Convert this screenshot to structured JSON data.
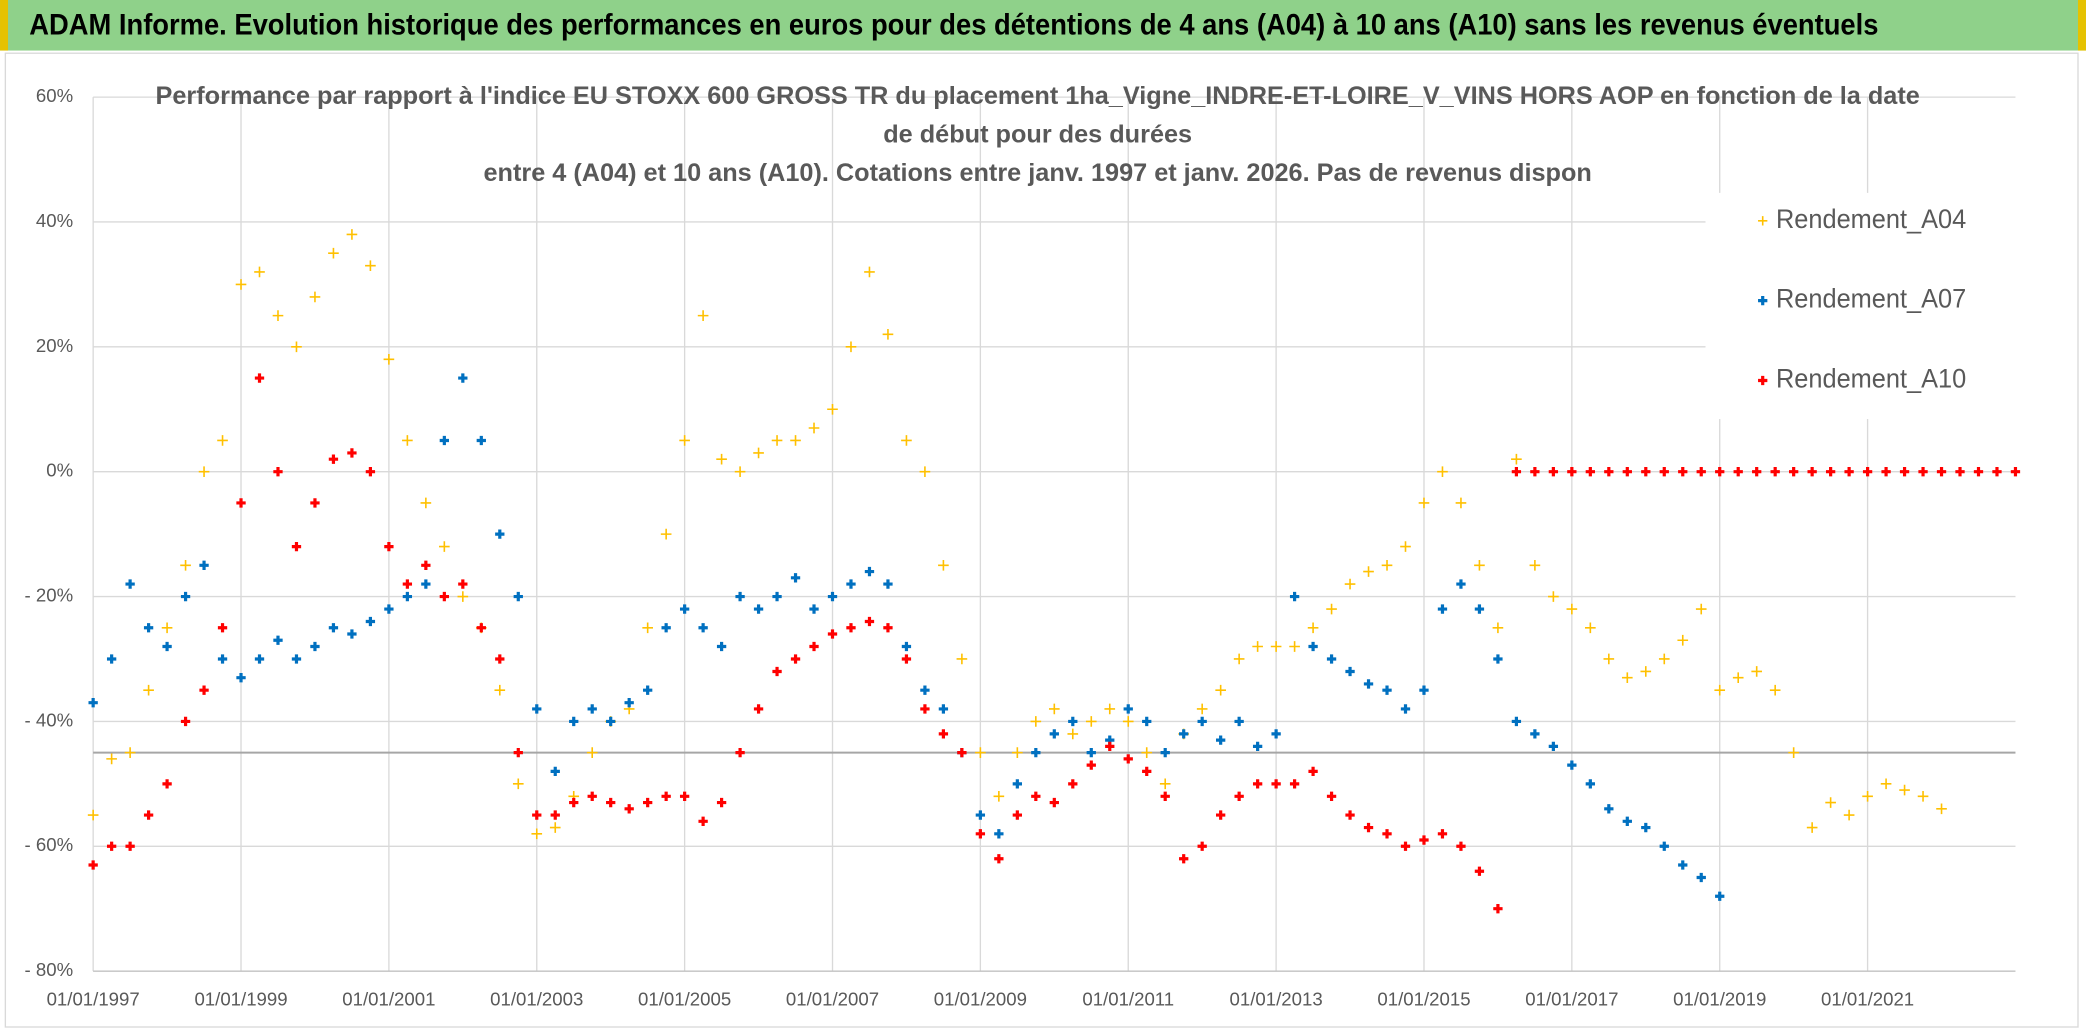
{
  "header": "ADAM Informe. Evolution historique des performances en euros pour des détentions de 4 ans (A04) à 10 ans (A10) sans les revenus éventuels",
  "chart_data": {
    "type": "scatter",
    "title": [
      "Performance par rapport à l'indice EU STOXX 600 GROSS TR  du placement 1ha_Vigne_INDRE-ET-LOIRE_V_VINS HORS AOP en fonction de la date",
      "de début pour des durées",
      "entre 4 (A04) et 10 ans (A10). Cotations entre janv. 1997 et janv. 2026. Pas de revenus dispon"
    ],
    "x": [
      "01/01/1997",
      "01/04/1997",
      "01/07/1997",
      "01/10/1997",
      "01/01/1998",
      "01/04/1998",
      "01/07/1998",
      "01/10/1998",
      "01/01/1999",
      "01/04/1999",
      "01/07/1999",
      "01/10/1999",
      "01/01/2000",
      "01/04/2000",
      "01/07/2000",
      "01/10/2000",
      "01/01/2001",
      "01/04/2001",
      "01/07/2001",
      "01/10/2001",
      "01/01/2002",
      "01/04/2002",
      "01/07/2002",
      "01/10/2002",
      "01/01/2003",
      "01/04/2003",
      "01/07/2003",
      "01/10/2003",
      "01/01/2004",
      "01/04/2004",
      "01/07/2004",
      "01/10/2004",
      "01/01/2005",
      "01/04/2005",
      "01/07/2005",
      "01/10/2005",
      "01/01/2006",
      "01/04/2006",
      "01/07/2006",
      "01/10/2006",
      "01/01/2007",
      "01/04/2007",
      "01/07/2007",
      "01/10/2007",
      "01/01/2008",
      "01/04/2008",
      "01/07/2008",
      "01/10/2008",
      "01/01/2009",
      "01/04/2009",
      "01/07/2009",
      "01/10/2009",
      "01/01/2010",
      "01/04/2010",
      "01/07/2010",
      "01/10/2010",
      "01/01/2011",
      "01/04/2011",
      "01/07/2011",
      "01/10/2011",
      "01/01/2012",
      "01/04/2012",
      "01/07/2012",
      "01/10/2012",
      "01/01/2013",
      "01/04/2013",
      "01/07/2013",
      "01/10/2013",
      "01/01/2014",
      "01/04/2014",
      "01/07/2014",
      "01/10/2014",
      "01/01/2015",
      "01/04/2015",
      "01/07/2015",
      "01/10/2015",
      "01/01/2016",
      "01/04/2016",
      "01/07/2016",
      "01/10/2016",
      "01/01/2017",
      "01/04/2017",
      "01/07/2017",
      "01/10/2017",
      "01/01/2018",
      "01/04/2018",
      "01/07/2018",
      "01/10/2018",
      "01/01/2019",
      "01/04/2019",
      "01/07/2019",
      "01/10/2019",
      "01/01/2020",
      "01/04/2020",
      "01/07/2020",
      "01/10/2020",
      "01/01/2021",
      "01/04/2021",
      "01/07/2021",
      "01/10/2021",
      "01/01/2022",
      "01/04/2022",
      "01/07/2022",
      "01/10/2022",
      "01/01/2023"
    ],
    "series": [
      {
        "name": "Rendement_A04",
        "color": "#ffc000",
        "values": [
          -55,
          -46,
          -45,
          -35,
          -25,
          -15,
          0,
          5,
          30,
          32,
          25,
          20,
          28,
          35,
          38,
          33,
          18,
          5,
          -5,
          -12,
          -20,
          -25,
          -35,
          -50,
          -58,
          -57,
          -52,
          -45,
          -40,
          -38,
          -25,
          -10,
          5,
          25,
          2,
          0,
          3,
          5,
          5,
          7,
          10,
          20,
          32,
          22,
          5,
          0,
          -15,
          -30,
          -45,
          -52,
          -45,
          -40,
          -38,
          -42,
          -40,
          -38,
          -40,
          -45,
          -50,
          -42,
          -38,
          -35,
          -30,
          -28,
          -28,
          -28,
          -25,
          -22,
          -18,
          -16,
          -15,
          -12,
          -5,
          0,
          -5,
          -15,
          -25,
          2,
          -15,
          -20,
          -22,
          -25,
          -30,
          -33,
          -32,
          -30,
          -27,
          -22,
          -35,
          -33,
          -32,
          -35,
          -45,
          -57,
          -53,
          -55,
          -52,
          -50,
          -51,
          -52,
          -54,
          null,
          null,
          null,
          null
        ]
      },
      {
        "name": "Rendement_A07",
        "color": "#0070c0",
        "values": [
          -37,
          -30,
          -18,
          -25,
          -28,
          -20,
          -15,
          -30,
          -33,
          -30,
          -27,
          -30,
          -28,
          -25,
          -26,
          -24,
          -22,
          -20,
          -18,
          5,
          15,
          5,
          -10,
          -20,
          -38,
          -48,
          -40,
          -38,
          -40,
          -37,
          -35,
          -25,
          -22,
          -25,
          -28,
          -20,
          -22,
          -20,
          -17,
          -22,
          -20,
          -18,
          -16,
          -18,
          -28,
          -35,
          -38,
          -45,
          -55,
          -58,
          -50,
          -45,
          -42,
          -40,
          -45,
          -43,
          -38,
          -40,
          -45,
          -42,
          -40,
          -43,
          -40,
          -44,
          -42,
          -20,
          -28,
          -30,
          -32,
          -34,
          -35,
          -38,
          -35,
          -22,
          -18,
          -22,
          -30,
          -40,
          -42,
          -44,
          -47,
          -50,
          -54,
          -56,
          -57,
          -60,
          -63,
          -65,
          -68,
          null,
          null,
          null,
          null,
          null,
          null,
          null,
          null,
          null,
          null,
          null,
          null,
          null,
          null,
          null,
          null
        ]
      },
      {
        "name": "Rendement_A10",
        "color": "#ff0000",
        "values": [
          -63,
          -60,
          -60,
          -55,
          -50,
          -40,
          -35,
          -25,
          -5,
          15,
          0,
          -12,
          -5,
          2,
          3,
          0,
          -12,
          -18,
          -15,
          -20,
          -18,
          -25,
          -30,
          -45,
          -55,
          -55,
          -53,
          -52,
          -53,
          -54,
          -53,
          -52,
          -52,
          -56,
          -53,
          -45,
          -38,
          -32,
          -30,
          -28,
          -26,
          -25,
          -24,
          -25,
          -30,
          -38,
          -42,
          -45,
          -58,
          -62,
          -55,
          -52,
          -53,
          -50,
          -47,
          -44,
          -46,
          -48,
          -52,
          -62,
          -60,
          -55,
          -52,
          -50,
          -50,
          -50,
          -48,
          -52,
          -55,
          -57,
          -58,
          -60,
          -59,
          -58,
          -60,
          -64,
          -70,
          0,
          0,
          0,
          0,
          0,
          0,
          0,
          0,
          0,
          0,
          0,
          0,
          0,
          0,
          0,
          0,
          0,
          0,
          0,
          0,
          0,
          0,
          0,
          0,
          0,
          0,
          0,
          0
        ]
      }
    ],
    "xlim": [
      "01/01/1997",
      "01/01/2023"
    ],
    "xticks": [
      "01/01/1997",
      "01/01/1999",
      "01/01/2001",
      "01/01/2003",
      "01/01/2005",
      "01/01/2007",
      "01/01/2009",
      "01/01/2011",
      "01/01/2013",
      "01/01/2015",
      "01/01/2017",
      "01/01/2019",
      "01/01/2021"
    ],
    "ylim": [
      -80,
      60
    ],
    "yticks": [
      {
        "value": -80,
        "label": "- 80%"
      },
      {
        "value": -60,
        "label": "- 60%"
      },
      {
        "value": -40,
        "label": "- 40%"
      },
      {
        "value": -20,
        "label": "- 20%"
      },
      {
        "value": 0,
        "label": "0%"
      },
      {
        "value": 20,
        "label": "20%"
      },
      {
        "value": 40,
        "label": "40%"
      },
      {
        "value": 60,
        "label": "60%"
      }
    ],
    "hline": -45,
    "grid": true,
    "legend": "upper right"
  }
}
